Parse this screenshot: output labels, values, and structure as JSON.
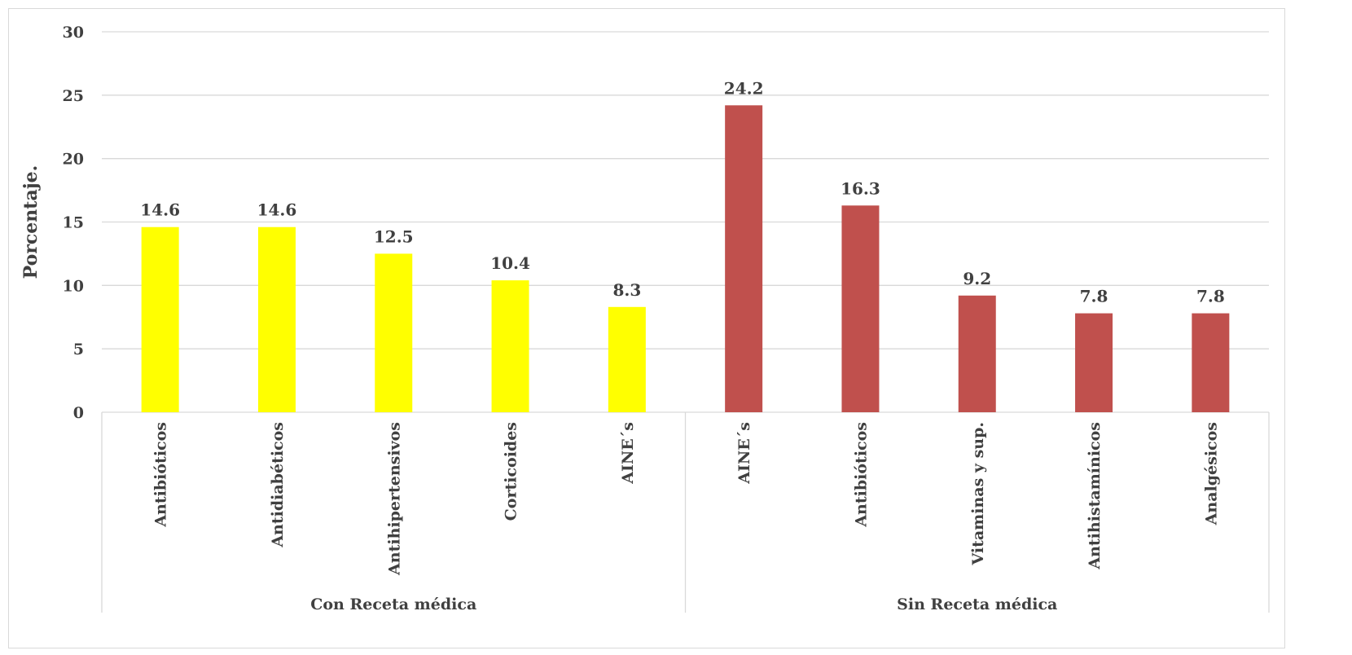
{
  "chart_data": {
    "type": "bar",
    "ylabel": "Porcentaje.",
    "ylim": [
      0,
      30
    ],
    "yticks": [
      0,
      5,
      10,
      15,
      20,
      25,
      30
    ],
    "grid": true,
    "groups": [
      {
        "name": "Con Receta médica",
        "color": "#FFFF00",
        "categories": [
          "Antibióticos",
          "Antidiabéticos",
          "Antihipertensivos",
          "Corticoides",
          "AINE´s"
        ],
        "values": [
          14.6,
          14.6,
          12.5,
          10.4,
          8.3
        ],
        "labels": [
          "14.6",
          "14.6",
          "12.5",
          "10.4",
          "8.3"
        ]
      },
      {
        "name": "Sin Receta médica",
        "color": "#C0504D",
        "categories": [
          "AINE´s",
          "Antibióticos",
          "Vitaminas y sup.",
          "Antihistamínicos",
          "Analgésicos"
        ],
        "values": [
          24.2,
          16.3,
          9.2,
          7.8,
          7.8
        ],
        "labels": [
          "24.2",
          "16.3",
          "9.2",
          "7.8",
          "7.8"
        ]
      }
    ]
  }
}
